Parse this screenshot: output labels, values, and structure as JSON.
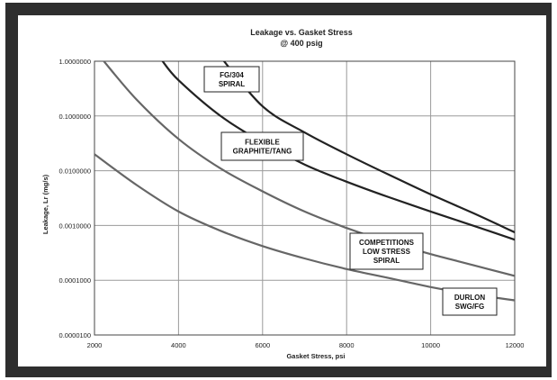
{
  "chart_data": {
    "type": "line",
    "title": "Leakage vs. Gasket Stress",
    "subtitle": "@ 400 psig",
    "xlabel": "Gasket Stress, psi",
    "ylabel": "Leakage, Lr (mg/s)",
    "x_scale": "linear",
    "y_scale": "log",
    "xlim": [
      2000,
      12000
    ],
    "ylim": [
      1e-05,
      1
    ],
    "grid": true,
    "x_ticks": [
      "2000",
      "4000",
      "6000",
      "8000",
      "10000",
      "12000"
    ],
    "x_tick_values": [
      2000,
      4000,
      6000,
      8000,
      10000,
      12000
    ],
    "y_ticks": [
      "1.0000000",
      "0.1000000",
      "0.0100000",
      "0.0010000",
      "0.0001000",
      "0.0000100"
    ],
    "y_tick_values": [
      1,
      0.1,
      0.01,
      0.001,
      0.0001,
      1e-05
    ],
    "series": [
      {
        "name": "FG/304 SPIRAL",
        "label_lines": [
          "FG/304",
          "SPIRAL"
        ],
        "color": "#222222",
        "x": [
          5000,
          6000,
          7000,
          8000,
          9000,
          10000,
          11000,
          12000
        ],
        "y": [
          1.2,
          0.15,
          0.05,
          0.02,
          0.0085,
          0.0037,
          0.0017,
          0.00075
        ]
      },
      {
        "name": "FLEXIBLE GRAPHITE/TANG",
        "label_lines": [
          "FLEXIBLE",
          "GRAPHITE/TANG"
        ],
        "color": "#222222",
        "x": [
          3600,
          4000,
          5000,
          6000,
          7000,
          8000,
          9000,
          10000,
          11000,
          12000
        ],
        "y": [
          1.05,
          0.45,
          0.1,
          0.033,
          0.013,
          0.0063,
          0.0033,
          0.0018,
          0.001,
          0.00055
        ]
      },
      {
        "name": "COMPETITIONS LOW STRESS SPIRAL",
        "label_lines": [
          "COMPETITIONS",
          "LOW STRESS",
          "SPIRAL"
        ],
        "color": "#666666",
        "x": [
          2200,
          3000,
          4000,
          5000,
          6000,
          7000,
          8000,
          9000,
          10000,
          11000,
          12000
        ],
        "y": [
          1.05,
          0.2,
          0.038,
          0.011,
          0.0042,
          0.0018,
          0.0009,
          0.0005,
          0.0003,
          0.00019,
          0.00012
        ]
      },
      {
        "name": "DURLON SWG/FG",
        "label_lines": [
          "DURLON",
          "SWG/FG"
        ],
        "color": "#666666",
        "x": [
          2000,
          3000,
          4000,
          5000,
          6000,
          7000,
          8000,
          9000,
          10000,
          11000,
          12000
        ],
        "y": [
          0.02,
          0.0055,
          0.0018,
          0.0008,
          0.00042,
          0.00025,
          0.00016,
          0.00011,
          7.5e-05,
          5.5e-05,
          4.3e-05
        ]
      }
    ]
  }
}
